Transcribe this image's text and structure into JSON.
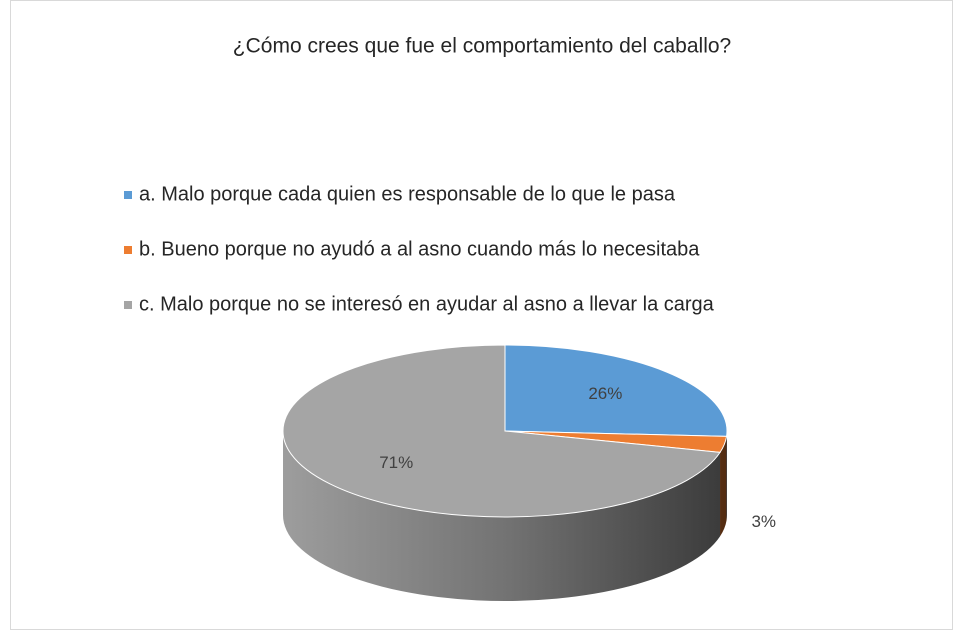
{
  "chart_data": {
    "type": "pie",
    "title": "¿Cómo crees que fue el comportamiento del caballo?",
    "categories": [
      "a. Malo porque cada quien es responsable de lo que le pasa",
      "b. Bueno porque no ayudó a al asno cuando más lo necesitaba",
      "c. Malo porque no se interesó en ayudar al asno a llevar la carga"
    ],
    "values": [
      26,
      3,
      71
    ],
    "value_labels": [
      "26%",
      "3%",
      "71%"
    ],
    "colors": [
      "#5b9bd5",
      "#ed7d31",
      "#a5a5a5"
    ],
    "legend": "top"
  }
}
